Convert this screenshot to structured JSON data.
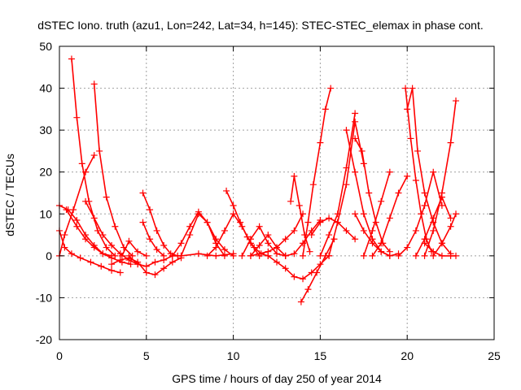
{
  "chart_data": {
    "type": "scatter",
    "title": "dSTEC Iono. truth (azu1, Lon=242, Lat=34, h=145): STEC-STEC_elemax in phase cont.",
    "xlabel": "GPS time / hours of day 250 of year 2014",
    "ylabel": "dSTEC  / TECUs",
    "xlim": [
      0,
      25
    ],
    "ylim": [
      -20,
      50
    ],
    "xticks": [
      "0",
      "5",
      "10",
      "15",
      "20",
      "25"
    ],
    "yticks": [
      "-20",
      "-10",
      "0",
      "10",
      "20",
      "30",
      "40",
      "50"
    ],
    "grid": true,
    "marker": "+",
    "color": "#ff0000",
    "series": [
      {
        "x": [
          0.0,
          0.3,
          0.7,
          1.2,
          1.8,
          2.4,
          3.0,
          3.5
        ],
        "y": [
          6,
          2,
          0.5,
          -0.5,
          -1.5,
          -2.5,
          -3.5,
          -4
        ]
      },
      {
        "x": [
          0.0,
          0.5,
          1.0,
          1.5,
          2.0,
          2.5,
          3.0
        ],
        "y": [
          12,
          11,
          8.5,
          5,
          2.5,
          0.5,
          0
        ]
      },
      {
        "x": [
          0.7,
          1.0,
          1.3,
          1.7,
          2.2,
          2.7,
          3.2
        ],
        "y": [
          47,
          33,
          22,
          13,
          6,
          2,
          0
        ]
      },
      {
        "x": [
          2.0,
          2.3,
          2.7,
          3.2,
          3.7,
          4.2
        ],
        "y": [
          41,
          25,
          14,
          7,
          2,
          0
        ]
      },
      {
        "x": [
          0.0,
          0.3,
          0.8,
          1.5,
          2.0
        ],
        "y": [
          0,
          5,
          11,
          20,
          24
        ]
      },
      {
        "x": [
          0.4,
          1.0,
          1.5,
          2.0,
          2.5,
          3.0,
          3.6,
          4.1
        ],
        "y": [
          11,
          7,
          4,
          2,
          0.5,
          -0.5,
          -1.5,
          -2
        ]
      },
      {
        "x": [
          1.5,
          2.0,
          2.5,
          3.0,
          3.5,
          4.0,
          4.5
        ],
        "y": [
          13,
          9,
          5,
          2.5,
          0.5,
          -1,
          -2
        ]
      },
      {
        "x": [
          3.0,
          3.5,
          4.0,
          4.5,
          5.0,
          5.5,
          6.0,
          6.5,
          7.0
        ],
        "y": [
          -2,
          -1,
          -0.5,
          -1.5,
          -4,
          -4.5,
          -3,
          -1.5,
          -0.5
        ]
      },
      {
        "x": [
          4.0,
          4.5,
          5.0,
          5.5,
          6.0,
          6.5,
          7.0,
          8.0,
          9.0,
          10.0
        ],
        "y": [
          0,
          -2,
          -2.5,
          -1.5,
          -1,
          0,
          0,
          0.5,
          0,
          0.5
        ]
      },
      {
        "x": [
          3.6,
          4.0,
          4.5,
          5.0
        ],
        "y": [
          0,
          3.5,
          1,
          0
        ]
      },
      {
        "x": [
          4.8,
          5.2,
          5.6,
          6.0,
          6.4,
          6.8
        ],
        "y": [
          15,
          11,
          6,
          2.5,
          0.5,
          0
        ]
      },
      {
        "x": [
          4.8,
          5.2,
          5.6,
          6.0
        ],
        "y": [
          8,
          4,
          1.5,
          0
        ]
      },
      {
        "x": [
          6.5,
          7.0,
          7.5,
          8.0,
          8.5,
          9.0,
          9.5,
          10.0
        ],
        "y": [
          0,
          3,
          7,
          10.5,
          8,
          4,
          1.5,
          0
        ]
      },
      {
        "x": [
          7.0,
          7.5,
          8.0,
          8.5,
          9.0,
          9.5
        ],
        "y": [
          0,
          5,
          10,
          8,
          3,
          0
        ]
      },
      {
        "x": [
          8.5,
          9.0,
          9.5,
          10.0,
          10.5,
          11.0,
          11.5
        ],
        "y": [
          0,
          2,
          6,
          10,
          7,
          3,
          0
        ]
      },
      {
        "x": [
          9.6,
          10.0,
          10.4,
          10.8,
          11.2,
          11.6,
          12.0
        ],
        "y": [
          15.5,
          12,
          8,
          4.5,
          2,
          0.5,
          0
        ]
      },
      {
        "x": [
          10.5,
          11.0,
          11.5,
          12.0,
          12.5,
          13.0
        ],
        "y": [
          0,
          4,
          7,
          3,
          0.5,
          0
        ]
      },
      {
        "x": [
          11.0,
          11.5,
          12.0,
          12.5,
          13.0
        ],
        "y": [
          0,
          2.5,
          5,
          2,
          0
        ]
      },
      {
        "x": [
          11.0,
          11.5,
          12.0,
          12.5,
          13.0,
          13.5,
          14.0
        ],
        "y": [
          0,
          0.5,
          1,
          2,
          4,
          6,
          10
        ]
      },
      {
        "x": [
          12.0,
          12.5,
          13.0,
          13.5,
          14.0,
          14.5,
          15.0,
          15.5
        ],
        "y": [
          0,
          -1.5,
          -3,
          -5,
          -5.5,
          -4,
          -2,
          0
        ]
      },
      {
        "x": [
          13.3,
          13.5,
          13.8,
          14.1,
          14.4
        ],
        "y": [
          13,
          19,
          12,
          5,
          1
        ]
      },
      {
        "x": [
          13.9,
          14.3,
          14.8,
          15.3,
          15.8
        ],
        "y": [
          -11,
          -8,
          -4,
          0,
          4
        ]
      },
      {
        "x": [
          14.0,
          14.3,
          14.6,
          15.0,
          15.3,
          15.6
        ],
        "y": [
          0,
          8,
          17,
          27,
          35,
          40
        ]
      },
      {
        "x": [
          13.0,
          13.5,
          14.0,
          14.5,
          15.0
        ],
        "y": [
          0,
          0.5,
          3,
          6,
          8.5
        ]
      },
      {
        "x": [
          14.5,
          15.0,
          15.5,
          16.0,
          16.5,
          17.0
        ],
        "y": [
          5,
          8,
          9,
          8,
          6,
          4
        ]
      },
      {
        "x": [
          15.0,
          15.5,
          16.0,
          16.5,
          17.0
        ],
        "y": [
          0,
          5,
          10,
          21,
          34
        ]
      },
      {
        "x": [
          15.5,
          16.0,
          16.5,
          17.0,
          17.5
        ],
        "y": [
          0,
          8,
          17,
          32,
          22
        ]
      },
      {
        "x": [
          16.5,
          17.0,
          17.5,
          18.0,
          18.5,
          19.0
        ],
        "y": [
          30,
          20,
          10,
          4,
          1,
          0
        ]
      },
      {
        "x": [
          17.0,
          17.4,
          17.8,
          18.2,
          18.6,
          19.0
        ],
        "y": [
          28,
          25,
          15,
          8,
          3,
          1
        ]
      },
      {
        "x": [
          17.0,
          17.5,
          18.0,
          18.5,
          19.0,
          19.5
        ],
        "y": [
          10,
          6,
          3,
          1,
          0,
          0.5
        ]
      },
      {
        "x": [
          18.0,
          18.5,
          19.0,
          19.5,
          20.0
        ],
        "y": [
          0,
          3,
          9,
          15,
          19
        ]
      },
      {
        "x": [
          17.5,
          18.0,
          18.5,
          19.0
        ],
        "y": [
          0,
          6,
          13,
          20
        ]
      },
      {
        "x": [
          19.9,
          20.2,
          20.5,
          20.8,
          21.1,
          21.4
        ],
        "y": [
          40,
          28,
          18,
          10,
          4,
          1
        ]
      },
      {
        "x": [
          20.0,
          20.3,
          20.6,
          21.0,
          21.5,
          22.0,
          22.5
        ],
        "y": [
          35,
          40,
          25,
          15,
          8,
          3,
          0.5
        ]
      },
      {
        "x": [
          19.5,
          20.0,
          20.5,
          21.0,
          21.5,
          22.0
        ],
        "y": [
          0,
          2,
          6,
          12,
          20,
          12
        ]
      },
      {
        "x": [
          20.5,
          21.0,
          21.5,
          22.0,
          22.5
        ],
        "y": [
          0,
          4,
          9,
          14,
          9
        ]
      },
      {
        "x": [
          21.0,
          21.5,
          22.0,
          22.5,
          22.8
        ],
        "y": [
          0,
          6,
          15,
          27,
          37
        ]
      },
      {
        "x": [
          21.5,
          22.0,
          22.5,
          22.8
        ],
        "y": [
          0,
          3,
          7,
          10
        ]
      },
      {
        "x": [
          21.0,
          21.5,
          22.0,
          22.5,
          22.8
        ],
        "y": [
          3,
          1,
          0,
          0,
          0
        ]
      }
    ]
  }
}
